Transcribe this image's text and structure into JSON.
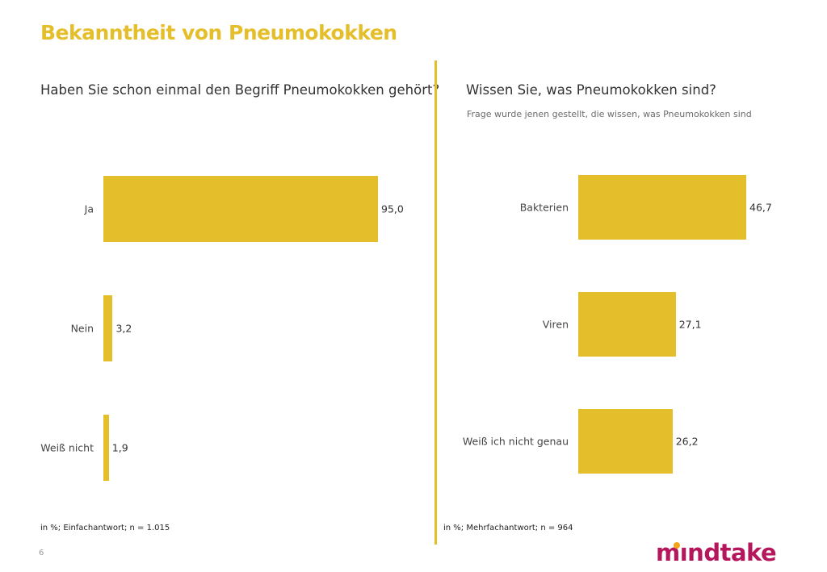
{
  "page": {
    "title": "Bekanntheit von Pneumokokken",
    "page_number": "6",
    "brand": {
      "pre": "m",
      "accent": "ı",
      "post": "ndtake"
    },
    "colors": {
      "accent": "#E5BE2C",
      "brand": "#B5175C",
      "brand_dot": "#F2A51A"
    }
  },
  "left": {
    "question": "Haben Sie schon einmal den Begriff Pneumokokken gehört?",
    "footnote": "in %; Einfachantwort;  n = 1.015"
  },
  "right": {
    "question": "Wissen Sie, was Pneumokokken sind?",
    "subquestion": "Frage wurde jenen gestellt, die wissen, was Pneumokokken sind",
    "footnote": "in %; Mehrfachantwort; n = 964"
  },
  "chart_data": [
    {
      "type": "bar",
      "orientation": "horizontal",
      "title": "Haben Sie schon einmal den Begriff Pneumokokken gehört?",
      "categories": [
        "Ja",
        "Nein",
        "Weiß nicht"
      ],
      "values": [
        95.0,
        3.2,
        1.9
      ],
      "value_labels": [
        "95,0",
        "3,2",
        "1,9"
      ],
      "xlim": [
        0,
        100
      ],
      "grid": false,
      "color": "#E5BE2C"
    },
    {
      "type": "bar",
      "orientation": "horizontal",
      "title": "Wissen Sie, was Pneumokokken sind?",
      "categories": [
        "Bakterien",
        "Viren",
        "Weiß ich nicht genau"
      ],
      "values": [
        46.7,
        27.1,
        26.2
      ],
      "value_labels": [
        "46,7",
        "27,1",
        "26,2"
      ],
      "xlim": [
        0,
        100
      ],
      "grid": false,
      "color": "#E5BE2C"
    }
  ]
}
